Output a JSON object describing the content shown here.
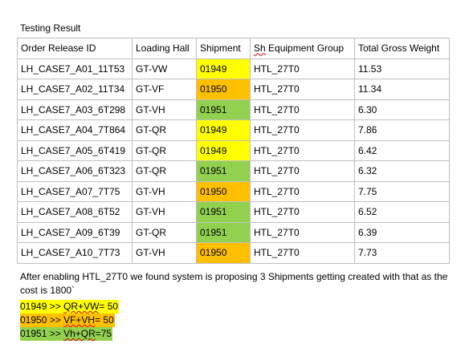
{
  "title": "Testing Result",
  "table": {
    "headers": [
      "Order Release ID",
      "Loading Hall",
      "Shipment",
      "Sh Equipment Group",
      "Total Gross Weight"
    ],
    "header_squiggle_word": "Sh",
    "header_rest": " Equipment Group",
    "rows": [
      {
        "id": "LH_CASE7_A01_11T53",
        "hall": "GT-VW",
        "shipment": "01949",
        "group": "HTL_27T0",
        "weight": "11.53"
      },
      {
        "id": "LH_CASE7_A02_11T34",
        "hall": "GT-VF",
        "shipment": "01950",
        "group": "HTL_27T0",
        "weight": "11.34"
      },
      {
        "id": "LH_CASE7_A03_6T298",
        "hall": "GT-VH",
        "shipment": "01951",
        "group": "HTL_27T0",
        "weight": "6.30"
      },
      {
        "id": "LH_CASE7_A04_7T864",
        "hall": "GT-QR",
        "shipment": "01949",
        "group": "HTL_27T0",
        "weight": "7.86"
      },
      {
        "id": "LH_CASE7_A05_6T419",
        "hall": "GT-QR",
        "shipment": "01949",
        "group": "HTL_27T0",
        "weight": "6.42"
      },
      {
        "id": "LH_CASE7_A06_6T323",
        "hall": "GT-QR",
        "shipment": "01951",
        "group": "HTL_27T0",
        "weight": "6.32"
      },
      {
        "id": "LH_CASE7_A07_7T75",
        "hall": "GT-VH",
        "shipment": "01950",
        "group": "HTL_27T0",
        "weight": "7.75"
      },
      {
        "id": "LH_CASE7_A08_6T52",
        "hall": "GT-VH",
        "shipment": "01951",
        "group": "HTL_27T0",
        "weight": "6.52"
      },
      {
        "id": "LH_CASE7_A09_6T39",
        "hall": "GT-QR",
        "shipment": "01951",
        "group": "HTL_27T0",
        "weight": "6.39"
      },
      {
        "id": "LH_CASE7_A10_7T73",
        "hall": "GT-VH",
        "shipment": "01950",
        "group": "HTL_27T0",
        "weight": "7.73"
      }
    ]
  },
  "shipment_colors": {
    "01949": "#ffff00",
    "01950": "#ffc000",
    "01951": "#92d050"
  },
  "note": "After enabling HTL_27T0 we found system is proposing 3 Shipments getting created with that as the cost is 1800`",
  "legend": [
    {
      "shipment": "01949",
      "prefix": "01949 >> ",
      "combo": "QR+VW",
      "suffix": "= 50",
      "color": "#ffff00"
    },
    {
      "shipment": "01950",
      "prefix": "01950 >> ",
      "combo": "VF+VH",
      "suffix": "= 50",
      "color": "#ffc000"
    },
    {
      "shipment": "01951",
      "prefix": "01951 >> ",
      "combo": "Vh+QR",
      "suffix": "=75",
      "color": "#92d050"
    }
  ]
}
